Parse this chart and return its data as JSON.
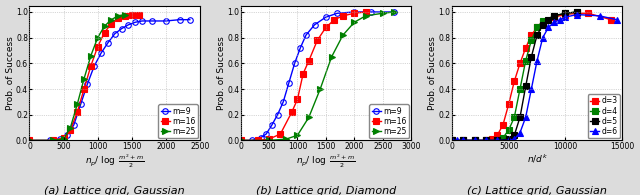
{
  "subplot_a": {
    "title": "(a) Lattice grid, Gaussian",
    "xlabel_math": "n_p/ \\log \\frac{m^2+m}{2}",
    "ylabel": "Prob. of Success",
    "xlim": [
      0,
      2500
    ],
    "ylim": [
      0,
      1.05
    ],
    "xticks": [
      0,
      500,
      1000,
      1500,
      2000,
      2500
    ],
    "yticks": [
      0.0,
      0.2,
      0.4,
      0.6,
      0.8,
      1.0
    ],
    "series": [
      {
        "label": "m=9",
        "color": "#0000ff",
        "marker": "o",
        "markersize": 4,
        "linestyle": "-",
        "filled": false,
        "x": [
          0,
          300,
          450,
          550,
          650,
          750,
          850,
          950,
          1050,
          1150,
          1250,
          1350,
          1450,
          1550,
          1650,
          1800,
          2000,
          2200,
          2350
        ],
        "y": [
          0.0,
          0.0,
          0.01,
          0.04,
          0.12,
          0.28,
          0.44,
          0.58,
          0.68,
          0.76,
          0.83,
          0.87,
          0.9,
          0.92,
          0.93,
          0.93,
          0.93,
          0.94,
          0.94
        ]
      },
      {
        "label": "m=16",
        "color": "#ff0000",
        "marker": "s",
        "markersize": 4,
        "linestyle": "-",
        "filled": true,
        "x": [
          0,
          350,
          500,
          600,
          700,
          800,
          900,
          1000,
          1100,
          1200,
          1300,
          1400,
          1500,
          1600
        ],
        "y": [
          0.0,
          0.0,
          0.02,
          0.08,
          0.22,
          0.4,
          0.58,
          0.73,
          0.84,
          0.91,
          0.95,
          0.97,
          0.98,
          0.98
        ]
      },
      {
        "label": "m=25",
        "color": "#008000",
        "marker": ">",
        "markersize": 4,
        "linestyle": "-",
        "filled": true,
        "x": [
          0,
          350,
          500,
          600,
          700,
          800,
          900,
          1000,
          1100,
          1200,
          1300,
          1400
        ],
        "y": [
          0.0,
          0.0,
          0.01,
          0.1,
          0.28,
          0.48,
          0.66,
          0.8,
          0.89,
          0.94,
          0.97,
          0.98
        ]
      }
    ],
    "legend_loc": "lower right"
  },
  "subplot_b": {
    "title": "(b) Lattice grid, Diamond",
    "xlabel_math": "n_p/ \\log \\frac{m^2+m}{2}",
    "ylabel": "Prob. of Success",
    "xlim": [
      0,
      3000
    ],
    "ylim": [
      0,
      1.05
    ],
    "xticks": [
      0,
      500,
      1000,
      1500,
      2000,
      2500,
      3000
    ],
    "yticks": [
      0.0,
      0.2,
      0.4,
      0.6,
      0.8,
      1.0
    ],
    "series": [
      {
        "label": "m=9",
        "color": "#0000ff",
        "marker": "o",
        "markersize": 4,
        "linestyle": "-",
        "filled": false,
        "x": [
          0,
          200,
          350,
          450,
          550,
          650,
          750,
          850,
          950,
          1050,
          1150,
          1300,
          1500,
          1700,
          2000,
          2300,
          2700
        ],
        "y": [
          0.0,
          0.0,
          0.02,
          0.05,
          0.12,
          0.2,
          0.3,
          0.45,
          0.6,
          0.72,
          0.82,
          0.9,
          0.96,
          0.99,
          1.0,
          1.0,
          1.0
        ]
      },
      {
        "label": "m=16",
        "color": "#ff0000",
        "marker": "s",
        "markersize": 4,
        "linestyle": "-",
        "filled": true,
        "x": [
          0,
          300,
          500,
          700,
          900,
          1000,
          1100,
          1200,
          1350,
          1500,
          1650,
          1800,
          2000,
          2200
        ],
        "y": [
          0.0,
          0.0,
          0.01,
          0.05,
          0.22,
          0.32,
          0.52,
          0.62,
          0.78,
          0.88,
          0.94,
          0.97,
          0.99,
          1.0
        ]
      },
      {
        "label": "m=25",
        "color": "#008000",
        "marker": ">",
        "markersize": 4,
        "linestyle": "-",
        "filled": true,
        "x": [
          0,
          500,
          800,
          1000,
          1200,
          1400,
          1600,
          1800,
          2000,
          2200,
          2500,
          2700
        ],
        "y": [
          0.0,
          0.0,
          0.01,
          0.04,
          0.18,
          0.4,
          0.65,
          0.82,
          0.92,
          0.97,
          0.99,
          1.0
        ]
      }
    ],
    "legend_loc": "lower right"
  },
  "subplot_c": {
    "title": "(c) Lattice grid, Gaussian",
    "xlabel_math": "n/d^k",
    "ylabel": "Prob. of Success",
    "xlim": [
      0,
      15000
    ],
    "ylim": [
      0,
      1.05
    ],
    "xticks": [
      0,
      5000,
      10000,
      15000
    ],
    "yticks": [
      0.0,
      0.2,
      0.4,
      0.6,
      0.8,
      1.0
    ],
    "series": [
      {
        "label": "d=3",
        "color": "#ff0000",
        "marker": "s",
        "markersize": 4,
        "linestyle": "-",
        "filled": true,
        "x": [
          0,
          1000,
          2000,
          3000,
          3500,
          4000,
          4500,
          5000,
          5500,
          6000,
          6500,
          7000,
          7500,
          8000,
          9000,
          10000,
          11000,
          12000,
          14000
        ],
        "y": [
          0.0,
          0.0,
          0.0,
          0.0,
          0.01,
          0.04,
          0.12,
          0.28,
          0.46,
          0.6,
          0.72,
          0.82,
          0.88,
          0.92,
          0.96,
          0.98,
          0.99,
          0.99,
          0.94
        ]
      },
      {
        "label": "d=4",
        "color": "#008000",
        "marker": "s",
        "markersize": 4,
        "linestyle": "-",
        "filled": true,
        "x": [
          0,
          1000,
          2000,
          3000,
          4000,
          4500,
          5000,
          5500,
          6000,
          6500,
          7000,
          7500,
          8000,
          9000,
          10000,
          11000
        ],
        "y": [
          0.0,
          0.0,
          0.0,
          0.0,
          0.0,
          0.02,
          0.08,
          0.18,
          0.4,
          0.62,
          0.78,
          0.88,
          0.93,
          0.97,
          0.99,
          1.0
        ]
      },
      {
        "label": "d=5",
        "color": "#000000",
        "marker": "s",
        "markersize": 4,
        "linestyle": "-",
        "filled": true,
        "x": [
          0,
          1000,
          2000,
          3000,
          4000,
          5000,
          5500,
          6000,
          6500,
          7000,
          7500,
          8000,
          8500,
          9000,
          10000,
          11000
        ],
        "y": [
          0.0,
          0.0,
          0.0,
          0.0,
          0.0,
          0.01,
          0.04,
          0.18,
          0.42,
          0.65,
          0.82,
          0.9,
          0.94,
          0.97,
          0.99,
          1.0
        ]
      },
      {
        "label": "d=6",
        "color": "#0000ff",
        "marker": "^",
        "markersize": 4,
        "linestyle": "-",
        "filled": true,
        "x": [
          0,
          500,
          1000,
          2000,
          3000,
          4000,
          5000,
          5500,
          6000,
          6500,
          7000,
          7500,
          8000,
          8500,
          9000,
          9500,
          10000,
          11000,
          13000,
          14500
        ],
        "y": [
          0.0,
          0.0,
          0.0,
          0.0,
          0.0,
          0.0,
          0.0,
          0.01,
          0.06,
          0.18,
          0.4,
          0.62,
          0.8,
          0.88,
          0.92,
          0.94,
          0.96,
          0.98,
          0.97,
          0.94
        ]
      }
    ],
    "legend_loc": "lower right"
  },
  "figure_bg": "#dcdcdc",
  "axes_bg": "#ffffff",
  "grid_color": "#b0b0b0",
  "grid_linestyle": ":",
  "legend_fontsize": 5.5,
  "tick_fontsize": 5.5,
  "label_fontsize": 6.5,
  "title_fontsize": 8,
  "linewidth": 1.0
}
